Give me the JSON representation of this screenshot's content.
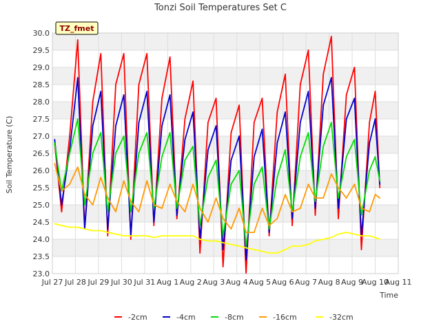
{
  "chart_data": {
    "type": "line",
    "title": "Tonzi Soil Temperatures Set C",
    "xlabel": "Time",
    "ylabel": "Soil Temperature (C)",
    "badge": "TZ_fmet",
    "xlim": [
      0,
      15
    ],
    "ylim": [
      23.0,
      30.0
    ],
    "x_ticks": [
      {
        "x": 0,
        "label": "Jul 27"
      },
      {
        "x": 1,
        "label": "Jul 28"
      },
      {
        "x": 2,
        "label": "Jul 29"
      },
      {
        "x": 3,
        "label": "Jul 30"
      },
      {
        "x": 4,
        "label": "Jul 31"
      },
      {
        "x": 5,
        "label": "Aug 1"
      },
      {
        "x": 6,
        "label": "Aug 2"
      },
      {
        "x": 7,
        "label": "Aug 3"
      },
      {
        "x": 8,
        "label": "Aug 4"
      },
      {
        "x": 9,
        "label": "Aug 5"
      },
      {
        "x": 10,
        "label": "Aug 6"
      },
      {
        "x": 11,
        "label": "Aug 7"
      },
      {
        "x": 12,
        "label": "Aug 8"
      },
      {
        "x": 13,
        "label": "Aug 9"
      },
      {
        "x": 14,
        "label": "Aug 10"
      },
      {
        "x": 15,
        "label": "Aug 11"
      }
    ],
    "y_ticks": [
      "23.0",
      "23.5",
      "24.0",
      "24.5",
      "25.0",
      "25.5",
      "26.0",
      "26.5",
      "27.0",
      "27.5",
      "28.0",
      "28.5",
      "29.0",
      "29.5",
      "30.0"
    ],
    "grid": true,
    "legend_position": "bottom",
    "x": [
      0.1,
      0.4,
      0.75,
      1.1,
      1.4,
      1.75,
      2.1,
      2.4,
      2.75,
      3.1,
      3.4,
      3.75,
      4.1,
      4.4,
      4.75,
      5.1,
      5.4,
      5.75,
      6.1,
      6.4,
      6.75,
      7.1,
      7.4,
      7.75,
      8.1,
      8.4,
      8.75,
      9.1,
      9.4,
      9.75,
      10.1,
      10.4,
      10.75,
      11.1,
      11.4,
      11.75,
      12.1,
      12.4,
      12.75,
      13.1,
      13.4,
      13.75,
      14.0,
      14.2
    ],
    "series": [
      {
        "name": "-2cm",
        "color": "#ff0000",
        "values": [
          26.8,
          24.8,
          27.0,
          29.8,
          24.3,
          28.0,
          29.4,
          24.1,
          28.5,
          29.4,
          24.0,
          28.5,
          29.4,
          24.4,
          28.1,
          29.3,
          24.6,
          27.5,
          28.6,
          23.6,
          27.4,
          28.1,
          23.2,
          27.1,
          27.9,
          23.0,
          27.4,
          28.1,
          24.1,
          27.7,
          28.8,
          24.4,
          28.5,
          29.5,
          24.7,
          28.8,
          29.9,
          24.6,
          28.2,
          29.0,
          23.7,
          27.4,
          28.3,
          25.5
        ]
      },
      {
        "name": "-4cm",
        "color": "#0000cc",
        "values": [
          26.9,
          25.0,
          26.6,
          28.7,
          24.3,
          27.3,
          28.3,
          24.3,
          27.3,
          28.2,
          24.1,
          27.4,
          28.3,
          24.5,
          27.3,
          28.2,
          24.7,
          26.9,
          27.7,
          24.0,
          26.6,
          27.3,
          23.7,
          26.3,
          27.0,
          23.4,
          26.4,
          27.2,
          24.2,
          26.8,
          27.7,
          24.6,
          27.4,
          28.3,
          24.9,
          27.9,
          28.7,
          24.9,
          27.5,
          28.1,
          24.1,
          26.8,
          27.5,
          25.6
        ]
      },
      {
        "name": "-8cm",
        "color": "#00dd00",
        "values": [
          26.8,
          25.4,
          26.5,
          27.5,
          25.0,
          26.5,
          27.1,
          24.8,
          26.5,
          27.0,
          24.8,
          26.5,
          27.1,
          24.9,
          26.4,
          27.1,
          24.9,
          26.3,
          26.7,
          24.4,
          25.8,
          26.3,
          24.1,
          25.6,
          26.0,
          23.8,
          25.6,
          26.1,
          24.3,
          25.8,
          26.6,
          24.8,
          26.4,
          27.1,
          25.1,
          26.7,
          27.4,
          25.2,
          26.4,
          26.9,
          24.7,
          26.0,
          26.4,
          25.7
        ]
      },
      {
        "name": "-16cm",
        "color": "#ff9900",
        "values": [
          26.2,
          25.4,
          25.6,
          26.1,
          25.3,
          25.0,
          25.8,
          25.2,
          24.8,
          25.7,
          25.1,
          24.8,
          25.7,
          25.0,
          24.9,
          25.6,
          25.1,
          24.8,
          25.6,
          24.9,
          24.5,
          25.2,
          24.6,
          24.3,
          24.9,
          24.2,
          24.2,
          24.9,
          24.4,
          24.6,
          25.3,
          24.8,
          24.9,
          25.6,
          25.2,
          25.2,
          25.9,
          25.5,
          25.2,
          25.6,
          24.9,
          24.8,
          25.3,
          25.2
        ]
      },
      {
        "name": "-32cm",
        "color": "#ffff00",
        "values": [
          24.45,
          24.4,
          24.35,
          24.35,
          24.3,
          24.25,
          24.25,
          24.2,
          24.15,
          24.1,
          24.1,
          24.1,
          24.1,
          24.05,
          24.1,
          24.1,
          24.1,
          24.1,
          24.1,
          24.0,
          23.95,
          23.95,
          23.9,
          23.85,
          23.8,
          23.75,
          23.7,
          23.65,
          23.6,
          23.6,
          23.7,
          23.8,
          23.8,
          23.85,
          23.95,
          24.0,
          24.05,
          24.15,
          24.2,
          24.15,
          24.1,
          24.1,
          24.05,
          24.0
        ]
      }
    ]
  }
}
